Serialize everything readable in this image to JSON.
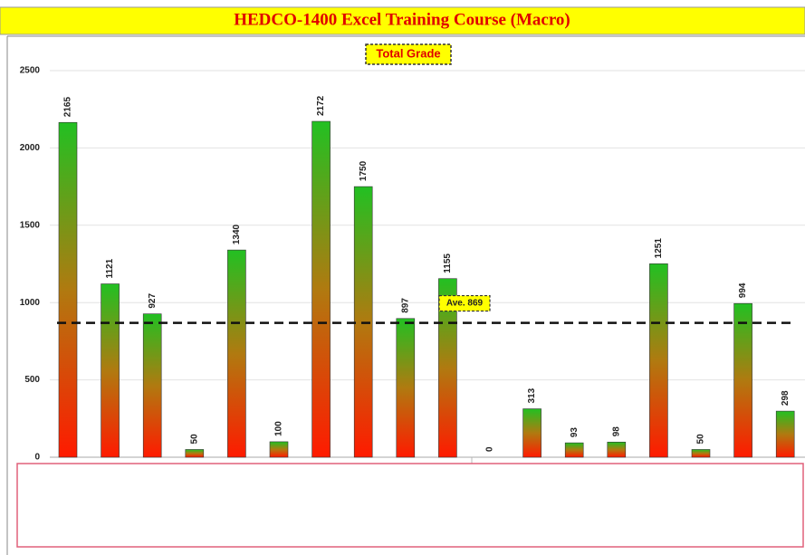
{
  "header": {
    "title": "HEDCO-1400 Excel Training Course (Macro)"
  },
  "chart_data": {
    "type": "bar",
    "title": "Total Grade",
    "values": [
      2165,
      1121,
      927,
      50,
      1340,
      100,
      2172,
      1750,
      897,
      1155,
      0,
      313,
      93,
      98,
      1251,
      50,
      994,
      298
    ],
    "ylim": [
      0,
      2500
    ],
    "yticks": [
      0,
      500,
      1000,
      1500,
      2000,
      2500
    ],
    "grid": true,
    "average": {
      "value": 869,
      "label": "Ave. 869"
    }
  }
}
